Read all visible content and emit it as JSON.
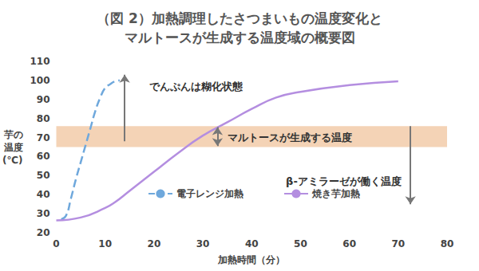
{
  "chart_data": {
    "type": "line",
    "title": "（図 2）加熱調理したさつまいもの温度変化と\nマルトースが生成する温度域の概要図",
    "xlabel": "加熱時間（分）",
    "ylabel": "芋の\n温度\n(℃)",
    "xlim": [
      0,
      80
    ],
    "xticks": [
      0,
      10,
      20,
      30,
      40,
      50,
      60,
      70,
      80
    ],
    "ylim": [
      20,
      110
    ],
    "yticks": [
      20,
      30,
      40,
      50,
      60,
      70,
      80,
      90,
      100,
      110
    ],
    "grid": false,
    "legend": "bottom",
    "series": [
      {
        "name": "電子レンジ加熱",
        "color": "#6fa8dc",
        "line_style": "dashed",
        "x": [
          1,
          2,
          3,
          4,
          5,
          6,
          7,
          8,
          9,
          10,
          11,
          12,
          13
        ],
        "values": [
          27,
          29,
          38,
          48,
          57,
          66,
          75,
          84,
          91,
          96,
          98,
          99.5,
          100
        ]
      },
      {
        "name": "焼き芋加熱",
        "color": "#b48ee0",
        "line_style": "solid",
        "x": [
          0,
          5,
          10,
          12,
          15,
          20,
          25,
          30,
          35,
          40,
          45,
          50,
          60,
          70
        ],
        "values": [
          26.5,
          28,
          33,
          36,
          42,
          52,
          62,
          71,
          78,
          85,
          91,
          94,
          97.5,
          99.5
        ]
      }
    ],
    "band": [
      65,
      76
    ],
    "band_color": "#f4d3b6",
    "annotations": [
      {
        "text": "でんぷんは糊化状態",
        "x": 19,
        "y": 97,
        "arrow_x": 14,
        "arrow": [
          68,
          103
        ],
        "marker": "single"
      },
      {
        "text": "マルトースが生成する温度",
        "x": 35,
        "y": 70,
        "arrow_x": 33,
        "arrow": [
          65.5,
          75.5
        ],
        "marker": "double"
      },
      {
        "text": "β-アミラーゼが働く温度",
        "x": 47,
        "y": 47,
        "arrow_x": 72.5,
        "arrow": [
          76,
          35
        ],
        "marker": "single"
      }
    ]
  }
}
